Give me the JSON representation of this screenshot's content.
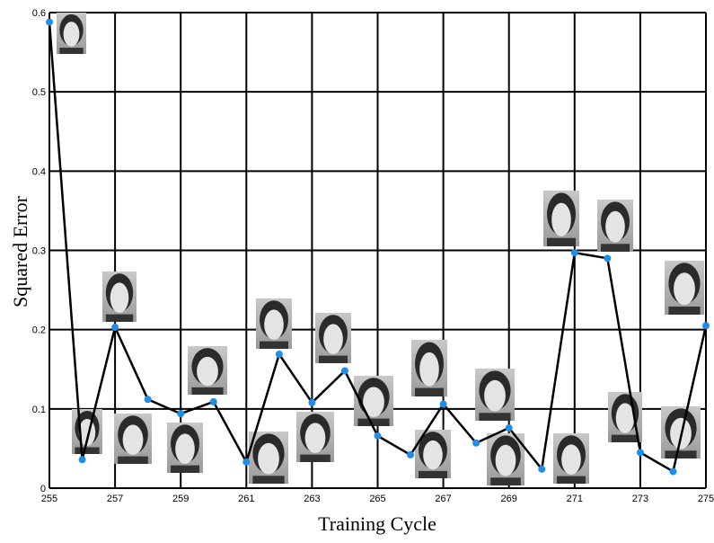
{
  "chart_data": {
    "type": "line",
    "x": [
      255,
      256,
      257,
      258,
      259,
      260,
      261,
      262,
      263,
      264,
      265,
      266,
      267,
      268,
      269,
      270,
      271,
      272,
      273,
      274,
      275
    ],
    "values": [
      0.588,
      0.036,
      0.203,
      0.112,
      0.094,
      0.109,
      0.033,
      0.169,
      0.108,
      0.148,
      0.066,
      0.042,
      0.106,
      0.057,
      0.076,
      0.024,
      0.297,
      0.29,
      0.045,
      0.021,
      0.205
    ],
    "color": "#000000",
    "marker_color": "#1e8ee8",
    "xlabel": "Training Cycle",
    "ylabel": "Squared Error",
    "xlim": [
      255,
      275
    ],
    "xticks": [
      255,
      257,
      259,
      261,
      263,
      265,
      267,
      269,
      271,
      273,
      275
    ],
    "ylim": [
      0,
      0.6
    ],
    "yticks": [
      0,
      0.1,
      0.2,
      0.3,
      0.4,
      0.5,
      0.6
    ],
    "grid": true
  }
}
